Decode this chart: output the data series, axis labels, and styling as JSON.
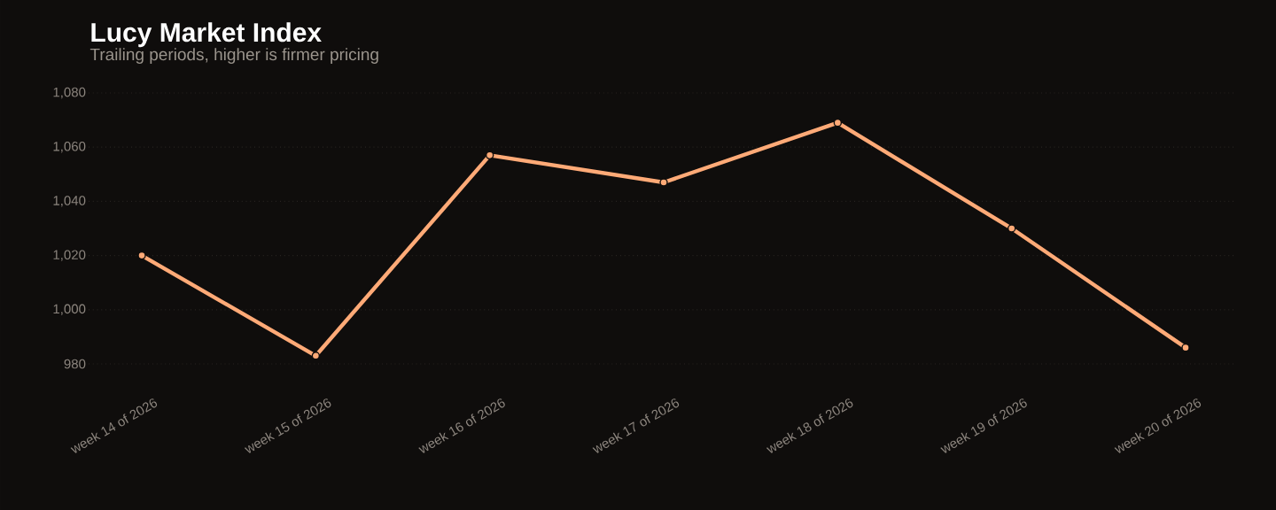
{
  "chart_data": {
    "type": "line",
    "title": "Lucy Market Index",
    "subtitle": "Trailing periods, higher is firmer pricing",
    "categories": [
      "week 14 of 2026",
      "week 15 of 2026",
      "week 16 of 2026",
      "week 17 of 2026",
      "week 18 of 2026",
      "week 19 of 2026",
      "week 20 of 2026"
    ],
    "values": [
      1020,
      983,
      1057,
      1047,
      1069,
      1030,
      986
    ],
    "color": "#ffaa77",
    "ylim": [
      980,
      1080
    ],
    "yticks": [
      980,
      {
        "value": 1000,
        "label": "1,000"
      },
      {
        "value": 1020,
        "label": "1,020"
      },
      {
        "value": 1040,
        "label": "1,040"
      },
      {
        "value": 1060,
        "label": "1,060"
      },
      {
        "value": 1080,
        "label": "1,080"
      }
    ],
    "grid": "y",
    "marker": "circle"
  }
}
